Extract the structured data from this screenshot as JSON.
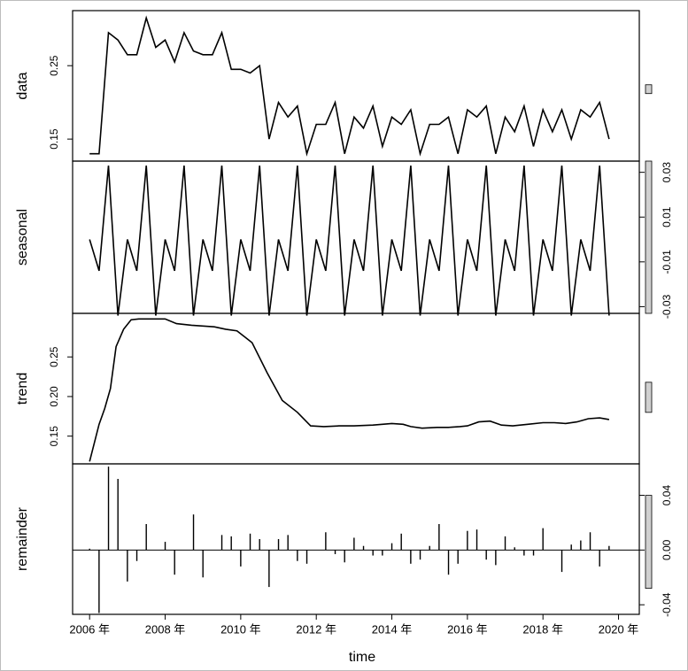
{
  "chart_data": {
    "type": "line",
    "xlabel": "time",
    "x_ticks": [
      "2006 年",
      "2008 年",
      "2010 年",
      "2012 年",
      "2014 年",
      "2016 年",
      "2018 年",
      "2020 年"
    ],
    "x_tick_values": [
      2006,
      2008,
      2010,
      2012,
      2014,
      2016,
      2018,
      2020
    ],
    "xlim": [
      2005.55,
      2020.55
    ],
    "panels": [
      {
        "name": "data",
        "ylabel": "data",
        "kind": "line",
        "ylim": [
          0.12,
          0.325
        ],
        "yticks": [
          0.15,
          0.25
        ],
        "ytick_labels": [
          "0.15",
          "0.25"
        ],
        "ytick_side": "left",
        "x": [
          2006.0,
          2006.25,
          2006.5,
          2006.75,
          2007.0,
          2007.25,
          2007.5,
          2007.75,
          2008.0,
          2008.25,
          2008.5,
          2008.75,
          2009.0,
          2009.25,
          2009.5,
          2009.75,
          2010.0,
          2010.25,
          2010.5,
          2010.75,
          2011.0,
          2011.25,
          2011.5,
          2011.75,
          2012.0,
          2012.25,
          2012.5,
          2012.75,
          2013.0,
          2013.25,
          2013.5,
          2013.75,
          2014.0,
          2014.25,
          2014.5,
          2014.75,
          2015.0,
          2015.25,
          2015.5,
          2015.75,
          2016.0,
          2016.25,
          2016.5,
          2016.75,
          2017.0,
          2017.25,
          2017.5,
          2017.75,
          2018.0,
          2018.25,
          2018.5,
          2018.75,
          2019.0,
          2019.25,
          2019.5,
          2019.75
        ],
        "y": [
          0.13,
          0.13,
          0.295,
          0.285,
          0.265,
          0.265,
          0.315,
          0.275,
          0.285,
          0.255,
          0.295,
          0.27,
          0.265,
          0.265,
          0.295,
          0.245,
          0.245,
          0.24,
          0.25,
          0.15,
          0.2,
          0.18,
          0.195,
          0.13,
          0.17,
          0.17,
          0.2,
          0.13,
          0.18,
          0.165,
          0.195,
          0.14,
          0.18,
          0.17,
          0.19,
          0.13,
          0.17,
          0.17,
          0.18,
          0.13,
          0.19,
          0.18,
          0.195,
          0.13,
          0.18,
          0.16,
          0.195,
          0.14,
          0.19,
          0.16,
          0.19,
          0.15,
          0.19,
          0.18,
          0.2,
          0.15
        ]
      },
      {
        "name": "seasonal",
        "ylabel": "seasonal",
        "kind": "line",
        "ylim": [
          -0.033,
          0.035
        ],
        "yticks": [
          -0.03,
          -0.01,
          0.01,
          0.03
        ],
        "ytick_labels": [
          "-0.03",
          "-0.01",
          "0.01",
          "0.03"
        ],
        "ytick_side": "right",
        "x": [
          2006.0,
          2006.25,
          2006.5,
          2006.75,
          2007.0,
          2007.25,
          2007.5,
          2007.75,
          2008.0,
          2008.25,
          2008.5,
          2008.75,
          2009.0,
          2009.25,
          2009.5,
          2009.75,
          2010.0,
          2010.25,
          2010.5,
          2010.75,
          2011.0,
          2011.25,
          2011.5,
          2011.75,
          2012.0,
          2012.25,
          2012.5,
          2012.75,
          2013.0,
          2013.25,
          2013.5,
          2013.75,
          2014.0,
          2014.25,
          2014.5,
          2014.75,
          2015.0,
          2015.25,
          2015.5,
          2015.75,
          2016.0,
          2016.25,
          2016.5,
          2016.75,
          2017.0,
          2017.25,
          2017.5,
          2017.75,
          2018.0,
          2018.25,
          2018.5,
          2018.75,
          2019.0,
          2019.25,
          2019.5,
          2019.75
        ],
        "y": [
          0.0,
          -0.014,
          0.033,
          -0.034,
          0.0,
          -0.014,
          0.033,
          -0.034,
          0.0,
          -0.014,
          0.033,
          -0.034,
          0.0,
          -0.014,
          0.033,
          -0.034,
          0.0,
          -0.014,
          0.033,
          -0.034,
          0.0,
          -0.014,
          0.033,
          -0.034,
          0.0,
          -0.014,
          0.033,
          -0.034,
          0.0,
          -0.014,
          0.033,
          -0.034,
          0.0,
          -0.014,
          0.033,
          -0.034,
          0.0,
          -0.014,
          0.033,
          -0.034,
          0.0,
          -0.014,
          0.033,
          -0.034,
          0.0,
          -0.014,
          0.033,
          -0.034,
          0.0,
          -0.014,
          0.033,
          -0.034,
          0.0,
          -0.014,
          0.033,
          -0.034
        ]
      },
      {
        "name": "trend",
        "ylabel": "trend",
        "kind": "line",
        "ylim": [
          0.115,
          0.305
        ],
        "yticks": [
          0.15,
          0.2,
          0.25
        ],
        "ytick_labels": [
          "0.15",
          "0.20",
          "0.25"
        ],
        "ytick_side": "left",
        "x": [
          2006.0,
          2006.25,
          2006.4,
          2006.55,
          2006.7,
          2006.9,
          2007.1,
          2007.3,
          2007.6,
          2008.0,
          2008.3,
          2008.7,
          2009.0,
          2009.3,
          2009.6,
          2009.9,
          2010.3,
          2010.7,
          2011.1,
          2011.5,
          2011.85,
          2012.2,
          2012.6,
          2013.0,
          2013.5,
          2014.0,
          2014.3,
          2014.5,
          2014.8,
          2015.2,
          2015.5,
          2015.8,
          2016.0,
          2016.3,
          2016.6,
          2016.9,
          2017.2,
          2017.6,
          2018.0,
          2018.3,
          2018.6,
          2018.9,
          2019.2,
          2019.5,
          2019.75
        ],
        "y": [
          0.118,
          0.165,
          0.185,
          0.21,
          0.263,
          0.285,
          0.297,
          0.298,
          0.298,
          0.298,
          0.292,
          0.29,
          0.289,
          0.288,
          0.285,
          0.283,
          0.268,
          0.23,
          0.195,
          0.18,
          0.163,
          0.162,
          0.163,
          0.163,
          0.164,
          0.166,
          0.165,
          0.162,
          0.16,
          0.161,
          0.161,
          0.162,
          0.163,
          0.168,
          0.169,
          0.164,
          0.163,
          0.165,
          0.167,
          0.167,
          0.166,
          0.168,
          0.172,
          0.173,
          0.171
        ]
      },
      {
        "name": "remainder",
        "ylabel": "remainder",
        "kind": "bar",
        "ylim": [
          -0.047,
          0.063
        ],
        "yticks": [
          -0.04,
          0.0,
          0.04
        ],
        "ytick_labels": [
          "-0.04",
          "0.00",
          "0.04"
        ],
        "ytick_side": "right",
        "x": [
          2006.0,
          2006.25,
          2006.5,
          2006.75,
          2007.0,
          2007.25,
          2007.5,
          2007.75,
          2008.0,
          2008.25,
          2008.5,
          2008.75,
          2009.0,
          2009.25,
          2009.5,
          2009.75,
          2010.0,
          2010.25,
          2010.5,
          2010.75,
          2011.0,
          2011.25,
          2011.5,
          2011.75,
          2012.0,
          2012.25,
          2012.5,
          2012.75,
          2013.0,
          2013.25,
          2013.5,
          2013.75,
          2014.0,
          2014.25,
          2014.5,
          2014.75,
          2015.0,
          2015.25,
          2015.5,
          2015.75,
          2016.0,
          2016.25,
          2016.5,
          2016.75,
          2017.0,
          2017.25,
          2017.5,
          2017.75,
          2018.0,
          2018.25,
          2018.5,
          2018.75,
          2019.0,
          2019.25,
          2019.5,
          2019.75
        ],
        "y": [
          0.001,
          -0.046,
          0.061,
          0.052,
          -0.023,
          -0.008,
          0.019,
          0.0,
          0.006,
          -0.018,
          0.0,
          0.026,
          -0.02,
          0.0,
          0.011,
          0.01,
          -0.012,
          0.012,
          0.008,
          -0.027,
          0.008,
          0.011,
          -0.008,
          -0.01,
          0.0,
          0.013,
          -0.003,
          -0.009,
          0.009,
          0.003,
          -0.004,
          -0.004,
          0.005,
          0.012,
          -0.01,
          -0.007,
          0.003,
          0.019,
          -0.018,
          -0.01,
          0.014,
          0.015,
          -0.007,
          -0.011,
          0.01,
          0.002,
          -0.004,
          -0.004,
          0.016,
          0.0,
          -0.016,
          0.004,
          0.007,
          0.013,
          -0.012,
          0.003
        ]
      }
    ],
    "scale_bars": [
      {
        "panel": "data",
        "low": 0.212,
        "high": 0.224
      },
      {
        "panel": "seasonal",
        "low": -0.033,
        "high": 0.035
      },
      {
        "panel": "trend",
        "low": 0.18,
        "high": 0.218
      },
      {
        "panel": "remainder",
        "low": -0.028,
        "high": 0.04
      }
    ],
    "grid": false,
    "legend": "none"
  }
}
